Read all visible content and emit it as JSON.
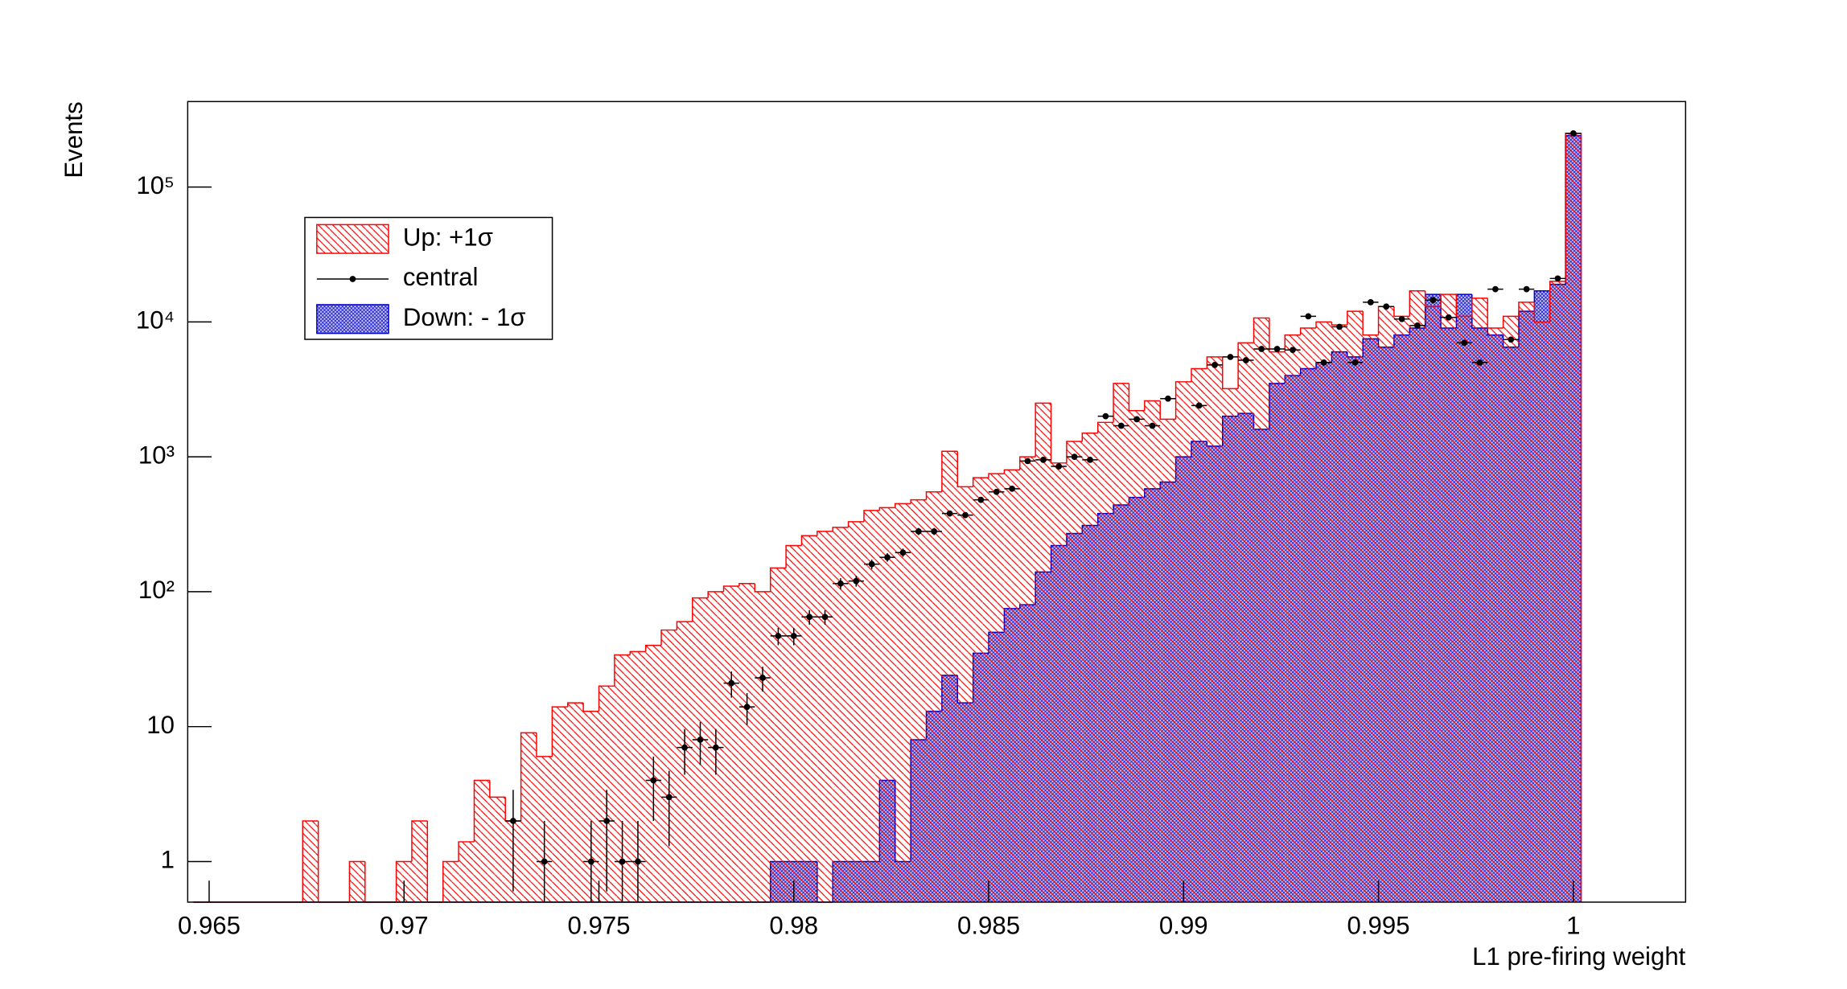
{
  "chart_data": {
    "type": "histogram",
    "x_label": "L1 pre-firing weight",
    "y_label": "Events",
    "log_y": true,
    "grid": false,
    "legend_position": "top-left",
    "xlim": [
      0.96445,
      1.00288
    ],
    "ylim": [
      0.5,
      430000
    ],
    "xticks": [
      0.965,
      0.97,
      0.975,
      0.98,
      0.985,
      0.99,
      0.995,
      1
    ],
    "yticks": [
      1,
      10,
      {
        "value": 100,
        "label": "10²"
      },
      {
        "value": 1000,
        "label": "10³"
      },
      {
        "value": 10000,
        "label": "10⁴"
      },
      {
        "value": 100000,
        "label": "10⁵"
      }
    ],
    "bins": [
      0.9646,
      0.965,
      0.9654,
      0.9658,
      0.9662,
      0.9666,
      0.967,
      0.9674,
      0.9678,
      0.9682,
      0.9686,
      0.969,
      0.9694,
      0.9698,
      0.9702,
      0.9706,
      0.971,
      0.9714,
      0.9718,
      0.9722,
      0.9726,
      0.973,
      0.9734,
      0.9738,
      0.9742,
      0.9746,
      0.975,
      0.9754,
      0.9758,
      0.9762,
      0.9766,
      0.977,
      0.9774,
      0.9778,
      0.9782,
      0.9786,
      0.979,
      0.9794,
      0.9798,
      0.9802,
      0.9806,
      0.981,
      0.9814,
      0.9818,
      0.9822,
      0.9826,
      0.983,
      0.9834,
      0.9838,
      0.9842,
      0.9846,
      0.985,
      0.9854,
      0.9858,
      0.9862,
      0.9866,
      0.987,
      0.9874,
      0.9878,
      0.9882,
      0.9886,
      0.989,
      0.9894,
      0.9898,
      0.9902,
      0.9906,
      0.991,
      0.9914,
      0.9918,
      0.9922,
      0.9926,
      0.993,
      0.9934,
      0.9938,
      0.9942,
      0.9946,
      0.995,
      0.9954,
      0.9958,
      0.9962,
      0.9966,
      0.997,
      0.9974,
      0.9978,
      0.9982,
      0.9986,
      0.999,
      0.9994,
      0.9998,
      1.0002
    ],
    "series": [
      {
        "name": "Up: +1σ",
        "color": "#ff0000",
        "values": [
          0,
          0,
          0,
          0,
          0,
          0,
          0,
          2,
          0,
          0,
          1,
          0,
          0,
          1,
          2,
          0,
          1,
          1.4,
          4,
          3,
          2,
          9,
          6,
          14,
          15,
          13,
          20,
          34,
          36,
          40,
          52,
          60,
          90,
          100,
          110,
          115,
          100,
          150,
          220,
          260,
          280,
          300,
          330,
          400,
          420,
          450,
          480,
          550,
          1100,
          600,
          700,
          750,
          800,
          1000,
          2500,
          900,
          1300,
          1500,
          1800,
          3500,
          2200,
          2600,
          1900,
          3600,
          4500,
          5500,
          3200,
          7000,
          10700,
          6000,
          8000,
          9000,
          10000,
          9500,
          12000,
          8000,
          13000,
          11000,
          17000,
          13000,
          16000,
          11000,
          15000,
          9000,
          11000,
          14000,
          10000,
          20000,
          250000
        ]
      },
      {
        "name": "central",
        "color": "#000000",
        "values": [
          null,
          null,
          null,
          null,
          null,
          null,
          null,
          null,
          null,
          null,
          null,
          null,
          null,
          null,
          null,
          null,
          null,
          null,
          null,
          null,
          2,
          null,
          1,
          null,
          null,
          1,
          2,
          1,
          1,
          4,
          3,
          7,
          8,
          7,
          21,
          14,
          23,
          47,
          47,
          65,
          65,
          115,
          120,
          160,
          180,
          195,
          280,
          280,
          380,
          370,
          480,
          550,
          580,
          930,
          950,
          850,
          1000,
          950,
          2000,
          1700,
          1900,
          1700,
          2700,
          null,
          2400,
          4800,
          5500,
          5200,
          6300,
          6300,
          6200,
          11000,
          5000,
          9200,
          5000,
          14000,
          13000,
          10500,
          9400,
          14500,
          10800,
          7000,
          5000,
          17500,
          7400,
          17500,
          null,
          21000,
          250000
        ],
        "errors": [
          null,
          null,
          null,
          null,
          null,
          null,
          null,
          null,
          null,
          null,
          null,
          null,
          null,
          null,
          null,
          null,
          null,
          null,
          null,
          null,
          1.4,
          null,
          1,
          null,
          null,
          1,
          1.4,
          1,
          1,
          2,
          1.7,
          2.6,
          2.8,
          2.6,
          4.6,
          3.7,
          4.8,
          6.9,
          6.9,
          8,
          8,
          11,
          11,
          13,
          13,
          14,
          17,
          17,
          19,
          19,
          22,
          23,
          24,
          30,
          31,
          29,
          32,
          31,
          45,
          41,
          44,
          41,
          52,
          null,
          49,
          69,
          74,
          72,
          79,
          79,
          79,
          105,
          71,
          96,
          71,
          118,
          114,
          102,
          97,
          120,
          104,
          84,
          71,
          132,
          86,
          132,
          null,
          145,
          500
        ]
      },
      {
        "name": "Down: - 1σ",
        "color": "#0000cc",
        "values": [
          0,
          0,
          0,
          0,
          0,
          0,
          0,
          0,
          0,
          0,
          0,
          0,
          0,
          0,
          0,
          0,
          0,
          0,
          0,
          0,
          0,
          0,
          0,
          0,
          0,
          0,
          0,
          0,
          0,
          0,
          0,
          0,
          0,
          0,
          0,
          0,
          0,
          1,
          1,
          1,
          0,
          1,
          1,
          1,
          4,
          1,
          8,
          13,
          24,
          15,
          35,
          50,
          75,
          80,
          140,
          220,
          270,
          310,
          380,
          440,
          500,
          580,
          650,
          1000,
          1300,
          1200,
          2000,
          2100,
          1600,
          3500,
          4000,
          4500,
          5000,
          6000,
          5500,
          7500,
          6500,
          8000,
          9000,
          16000,
          9000,
          16000,
          9000,
          8000,
          6500,
          12000,
          17000,
          19000,
          240000
        ]
      }
    ]
  }
}
